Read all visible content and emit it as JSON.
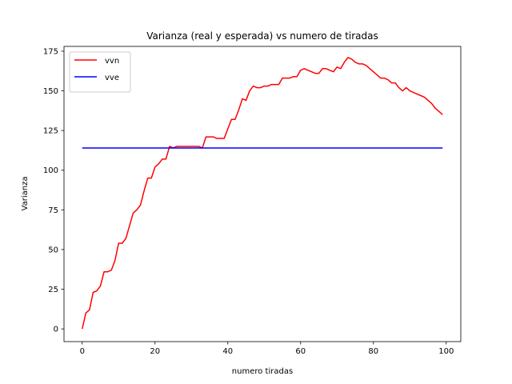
{
  "chart_data": {
    "type": "line",
    "title": "Varianza (real y esperada) vs numero de tiradas",
    "xlabel": "numero tiradas",
    "ylabel": "Varianza",
    "xlim": [
      -5,
      104
    ],
    "ylim": [
      -8,
      178
    ],
    "xticks": [
      0,
      20,
      40,
      60,
      80,
      100
    ],
    "yticks": [
      0,
      25,
      50,
      75,
      100,
      125,
      150,
      175
    ],
    "grid": false,
    "legend_position": "upper-left",
    "series": [
      {
        "name": "vvn",
        "color": "#ff0000",
        "x": [
          0,
          1,
          2,
          3,
          4,
          5,
          6,
          7,
          8,
          9,
          10,
          11,
          12,
          13,
          14,
          15,
          16,
          17,
          18,
          19,
          20,
          21,
          22,
          23,
          24,
          25,
          26,
          27,
          28,
          29,
          30,
          31,
          32,
          33,
          34,
          35,
          36,
          37,
          38,
          39,
          40,
          41,
          42,
          43,
          44,
          45,
          46,
          47,
          48,
          49,
          50,
          51,
          52,
          53,
          54,
          55,
          56,
          57,
          58,
          59,
          60,
          61,
          62,
          63,
          64,
          65,
          66,
          67,
          68,
          69,
          70,
          71,
          72,
          73,
          74,
          75,
          76,
          77,
          78,
          79,
          80,
          81,
          82,
          83,
          84,
          85,
          86,
          87,
          88,
          89,
          90,
          91,
          92,
          93,
          94,
          95,
          96,
          97,
          98,
          99
        ],
        "values": [
          0,
          10,
          12,
          23,
          24,
          27,
          36,
          36,
          37,
          43,
          54,
          54,
          57,
          65,
          73,
          75,
          78,
          87,
          95,
          95,
          102,
          104,
          107,
          107,
          115,
          114,
          115,
          115,
          115,
          115,
          115,
          115,
          115,
          114,
          121,
          121,
          121,
          120,
          120,
          120,
          126,
          132,
          132,
          138,
          145,
          144,
          150,
          153,
          152,
          152,
          153,
          153,
          154,
          154,
          154,
          158,
          158,
          158,
          159,
          159,
          163,
          164,
          163,
          162,
          161,
          161,
          164,
          164,
          163,
          162,
          165,
          164,
          168,
          171,
          170,
          168,
          167,
          167,
          166,
          164,
          162,
          160,
          158,
          158,
          157,
          155,
          155,
          152,
          150,
          152,
          150,
          149,
          148,
          147,
          146,
          144,
          142,
          139,
          137,
          135
        ]
      },
      {
        "name": "vve",
        "color": "#0000ff",
        "x": [
          0,
          99
        ],
        "values": [
          114,
          114
        ]
      }
    ]
  }
}
